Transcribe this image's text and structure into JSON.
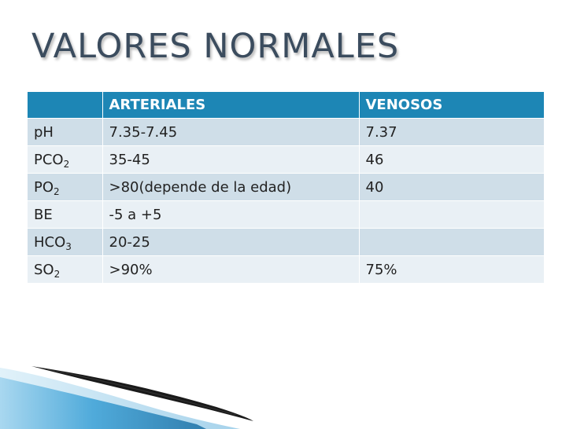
{
  "slide": {
    "title": "VALORES NORMALES"
  },
  "table": {
    "headers": {
      "parameter": "",
      "arterial": "ARTERIALES",
      "venous": "VENOSOS"
    },
    "rows": [
      {
        "param": "pH",
        "sub": "",
        "arterial": "7.35-7.45",
        "venous": "7.37"
      },
      {
        "param": "PCO",
        "sub": "2",
        "arterial": "35-45",
        "venous": "46"
      },
      {
        "param": "PO",
        "sub": "2",
        "arterial": ">80(depende de la edad)",
        "venous": "40"
      },
      {
        "param": "BE",
        "sub": "",
        "arterial": "-5 a +5",
        "venous": ""
      },
      {
        "param": "HCO",
        "sub": "3",
        "arterial": "20-25",
        "venous": ""
      },
      {
        "param": "SO",
        "sub": "2",
        "arterial": ">90%",
        "venous": "75%"
      }
    ]
  },
  "colors": {
    "header": "#1d86b5",
    "band_dark": "#cfdee8",
    "band_light": "#e9f0f5",
    "title": "#3b4c5e",
    "accent_curve": "#3aa0d6"
  }
}
